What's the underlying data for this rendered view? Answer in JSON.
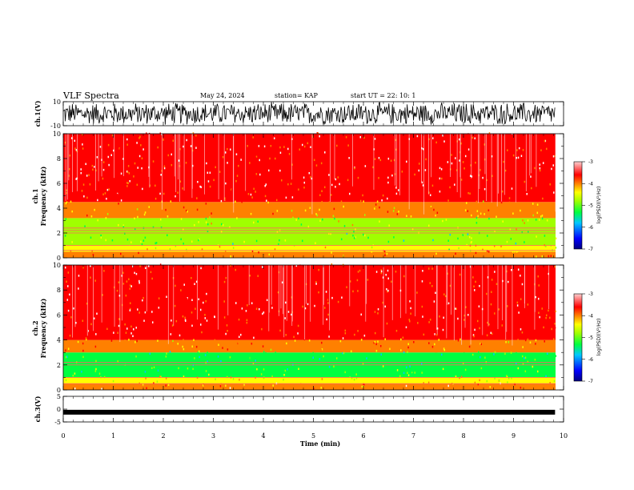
{
  "header": {
    "title": "VLF Spectra",
    "date": "May 24, 2024",
    "station": "station= KAP",
    "start": "start  UT  =   22: 10: 1"
  },
  "colors": {
    "waveform": "#000000",
    "colormap": [
      "#000080",
      "#0000ff",
      "#00c8ff",
      "#00ff40",
      "#a0ff00",
      "#ffff00",
      "#ff8000",
      "#ff0000",
      "#ffffff"
    ]
  },
  "chart_data": [
    {
      "type": "line",
      "ylabel": "ch.1(V)",
      "ylim": [
        -10,
        10
      ],
      "yticks": [
        {
          "value": 10,
          "label": "10"
        },
        {
          "value": -10,
          "label": "-10"
        }
      ],
      "description_values": {
        "amplitude_range": [
          -10,
          10
        ]
      }
    },
    {
      "type": "heatmap",
      "ylabel_line1": "ch.1",
      "ylabel_line2": "Frequency  (kHz)",
      "ylim": [
        0,
        10
      ],
      "yticks": [
        {
          "value": 0,
          "label": "0"
        },
        {
          "value": 2,
          "label": "2"
        },
        {
          "value": 4,
          "label": "4"
        },
        {
          "value": 6,
          "label": "6"
        },
        {
          "value": 8,
          "label": "8"
        },
        {
          "value": 10,
          "label": "10"
        }
      ],
      "colorbar": {
        "label": "log(PSD)(V²/Hz)",
        "range": [
          -7,
          -3
        ],
        "ticks": [
          {
            "value": -3,
            "label": "-3"
          },
          {
            "value": -4,
            "label": "-4"
          },
          {
            "value": -5,
            "label": "-5"
          },
          {
            "value": -6,
            "label": "-6"
          },
          {
            "value": -7,
            "label": "-7"
          }
        ]
      },
      "bands_khz": [
        {
          "from": 0.0,
          "to": 0.5,
          "level": -4.0
        },
        {
          "from": 0.5,
          "to": 1.0,
          "level": -4.6
        },
        {
          "from": 1.0,
          "to": 2.0,
          "level": -5.2
        },
        {
          "from": 2.0,
          "to": 3.2,
          "level": -4.9
        },
        {
          "from": 3.2,
          "to": 4.5,
          "level": -4.2
        },
        {
          "from": 4.5,
          "to": 10.0,
          "level": -3.5
        }
      ],
      "lines_khz": [
        0.6,
        1.0,
        2.0,
        2.2,
        2.4
      ]
    },
    {
      "type": "heatmap",
      "ylabel_line1": "ch.2",
      "ylabel_line2": "Frequency  (kHz)",
      "ylim": [
        0,
        10
      ],
      "yticks": [
        {
          "value": 0,
          "label": "0"
        },
        {
          "value": 2,
          "label": "2"
        },
        {
          "value": 4,
          "label": "4"
        },
        {
          "value": 6,
          "label": "6"
        },
        {
          "value": 8,
          "label": "8"
        },
        {
          "value": 10,
          "label": "10"
        }
      ],
      "colorbar": {
        "label": "log(PSD)(V²/Hz)",
        "range": [
          -7,
          -3
        ],
        "ticks": [
          {
            "value": -3,
            "label": "-3"
          },
          {
            "value": -4,
            "label": "-4"
          },
          {
            "value": -5,
            "label": "-5"
          },
          {
            "value": -6,
            "label": "-6"
          },
          {
            "value": -7,
            "label": "-7"
          }
        ]
      },
      "bands_khz": [
        {
          "from": 0.0,
          "to": 0.5,
          "level": -3.8
        },
        {
          "from": 0.5,
          "to": 1.0,
          "level": -4.6
        },
        {
          "from": 1.0,
          "to": 2.0,
          "level": -5.3
        },
        {
          "from": 2.0,
          "to": 3.0,
          "level": -5.5
        },
        {
          "from": 3.0,
          "to": 4.0,
          "level": -4.1
        },
        {
          "from": 4.0,
          "to": 10.0,
          "level": -3.5
        }
      ],
      "lines_khz": [
        0.5,
        1.0,
        2.0,
        2.2
      ]
    },
    {
      "type": "line",
      "ylabel": "ch.3(V)",
      "ylim": [
        -5,
        5
      ],
      "yticks": [
        {
          "value": 5,
          "label": "5"
        },
        {
          "value": 0,
          "label": "0"
        },
        {
          "value": -5,
          "label": "-5"
        }
      ],
      "xlabel": "Time  (min)",
      "xlim": [
        0,
        10
      ],
      "xticks": [
        {
          "value": 0,
          "label": "0"
        },
        {
          "value": 1,
          "label": "1"
        },
        {
          "value": 2,
          "label": "2"
        },
        {
          "value": 3,
          "label": "3"
        },
        {
          "value": 4,
          "label": "4"
        },
        {
          "value": 5,
          "label": "5"
        },
        {
          "value": 6,
          "label": "6"
        },
        {
          "value": 7,
          "label": "7"
        },
        {
          "value": 8,
          "label": "8"
        },
        {
          "value": 9,
          "label": "9"
        },
        {
          "value": 10,
          "label": "10"
        }
      ],
      "signal_level": -1.2,
      "data_end_min": 9.83
    }
  ]
}
